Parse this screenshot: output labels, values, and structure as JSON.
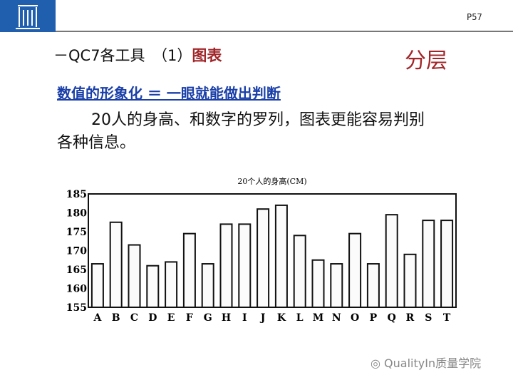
{
  "header": {
    "page_number": "P57"
  },
  "title": {
    "prefix": "－QC7各工具　（1）",
    "highlight": "图表"
  },
  "section_tag": "分层",
  "subtitle": "数值的形象化 ＝ 一眼就能做出判断",
  "body": {
    "line1": "20人的身高、和数字的罗列，图表更能容易判别",
    "line2": "各种信息。"
  },
  "watermark": "QualityIn质量学院",
  "chart_data": {
    "type": "bar",
    "title": "20个人的身高(CM)",
    "categories": [
      "A",
      "B",
      "C",
      "D",
      "E",
      "F",
      "G",
      "H",
      "I",
      "J",
      "K",
      "L",
      "M",
      "N",
      "O",
      "P",
      "Q",
      "R",
      "S",
      "T"
    ],
    "values": [
      166.5,
      177.5,
      171.5,
      166,
      167,
      174.5,
      166.5,
      177,
      177,
      181,
      182,
      174,
      167.5,
      166.5,
      174.5,
      166.5,
      179.5,
      169,
      178,
      178
    ],
    "yticks": [
      155,
      160,
      165,
      170,
      175,
      180,
      185
    ],
    "ylim": [
      155,
      185
    ],
    "xlabel": "",
    "ylabel": "",
    "grid": false
  }
}
